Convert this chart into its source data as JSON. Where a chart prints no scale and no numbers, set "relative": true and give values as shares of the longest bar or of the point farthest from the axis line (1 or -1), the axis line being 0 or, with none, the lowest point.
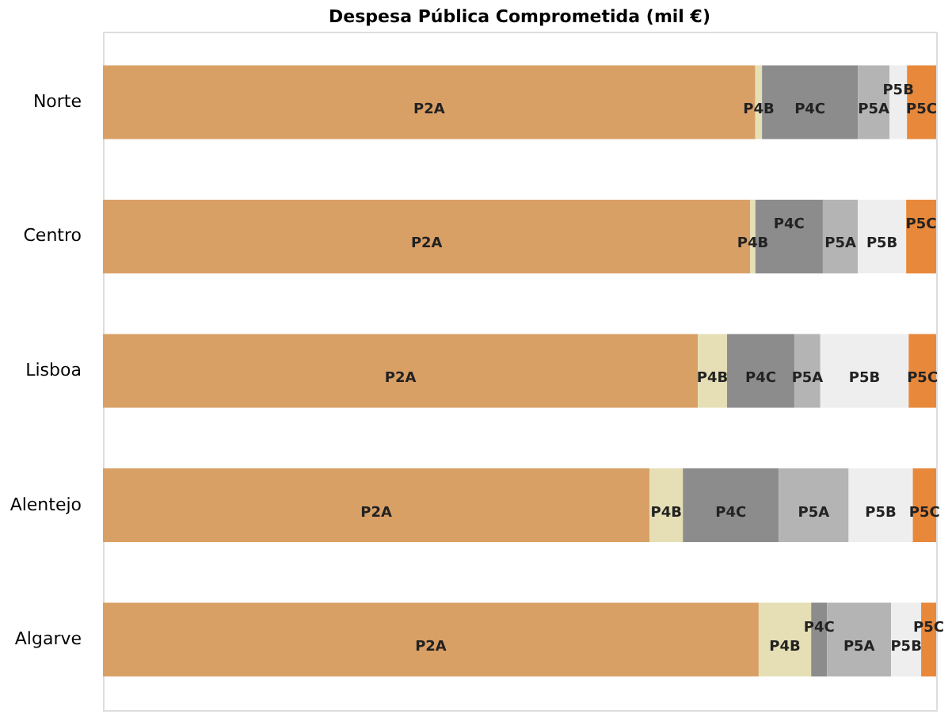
{
  "chart_data": {
    "type": "bar",
    "orientation": "horizontal",
    "stacked": true,
    "relative": true,
    "title": "Despesa Pública Comprometida (mil €)",
    "categories": [
      "Norte",
      "Centro",
      "Lisboa",
      "Alentejo",
      "Algarve"
    ],
    "series": [
      {
        "name": "P2A",
        "color": "#d9a066",
        "values": [
          0.783,
          0.777,
          0.714,
          0.656,
          0.787
        ]
      },
      {
        "name": "P4B",
        "color": "#e6dfb5",
        "values": [
          0.008,
          0.006,
          0.035,
          0.04,
          0.063
        ]
      },
      {
        "name": "P4C",
        "color": "#8c8c8c",
        "values": [
          0.115,
          0.081,
          0.081,
          0.115,
          0.019
        ]
      },
      {
        "name": "P5A",
        "color": "#b4b4b4",
        "values": [
          0.038,
          0.042,
          0.031,
          0.084,
          0.077
        ]
      },
      {
        "name": "P5B",
        "color": "#eeeeee",
        "values": [
          0.021,
          0.058,
          0.106,
          0.077,
          0.036
        ]
      },
      {
        "name": "P5C",
        "color": "#e8883a",
        "values": [
          0.035,
          0.036,
          0.033,
          0.028,
          0.018
        ]
      }
    ],
    "legend": false
  }
}
